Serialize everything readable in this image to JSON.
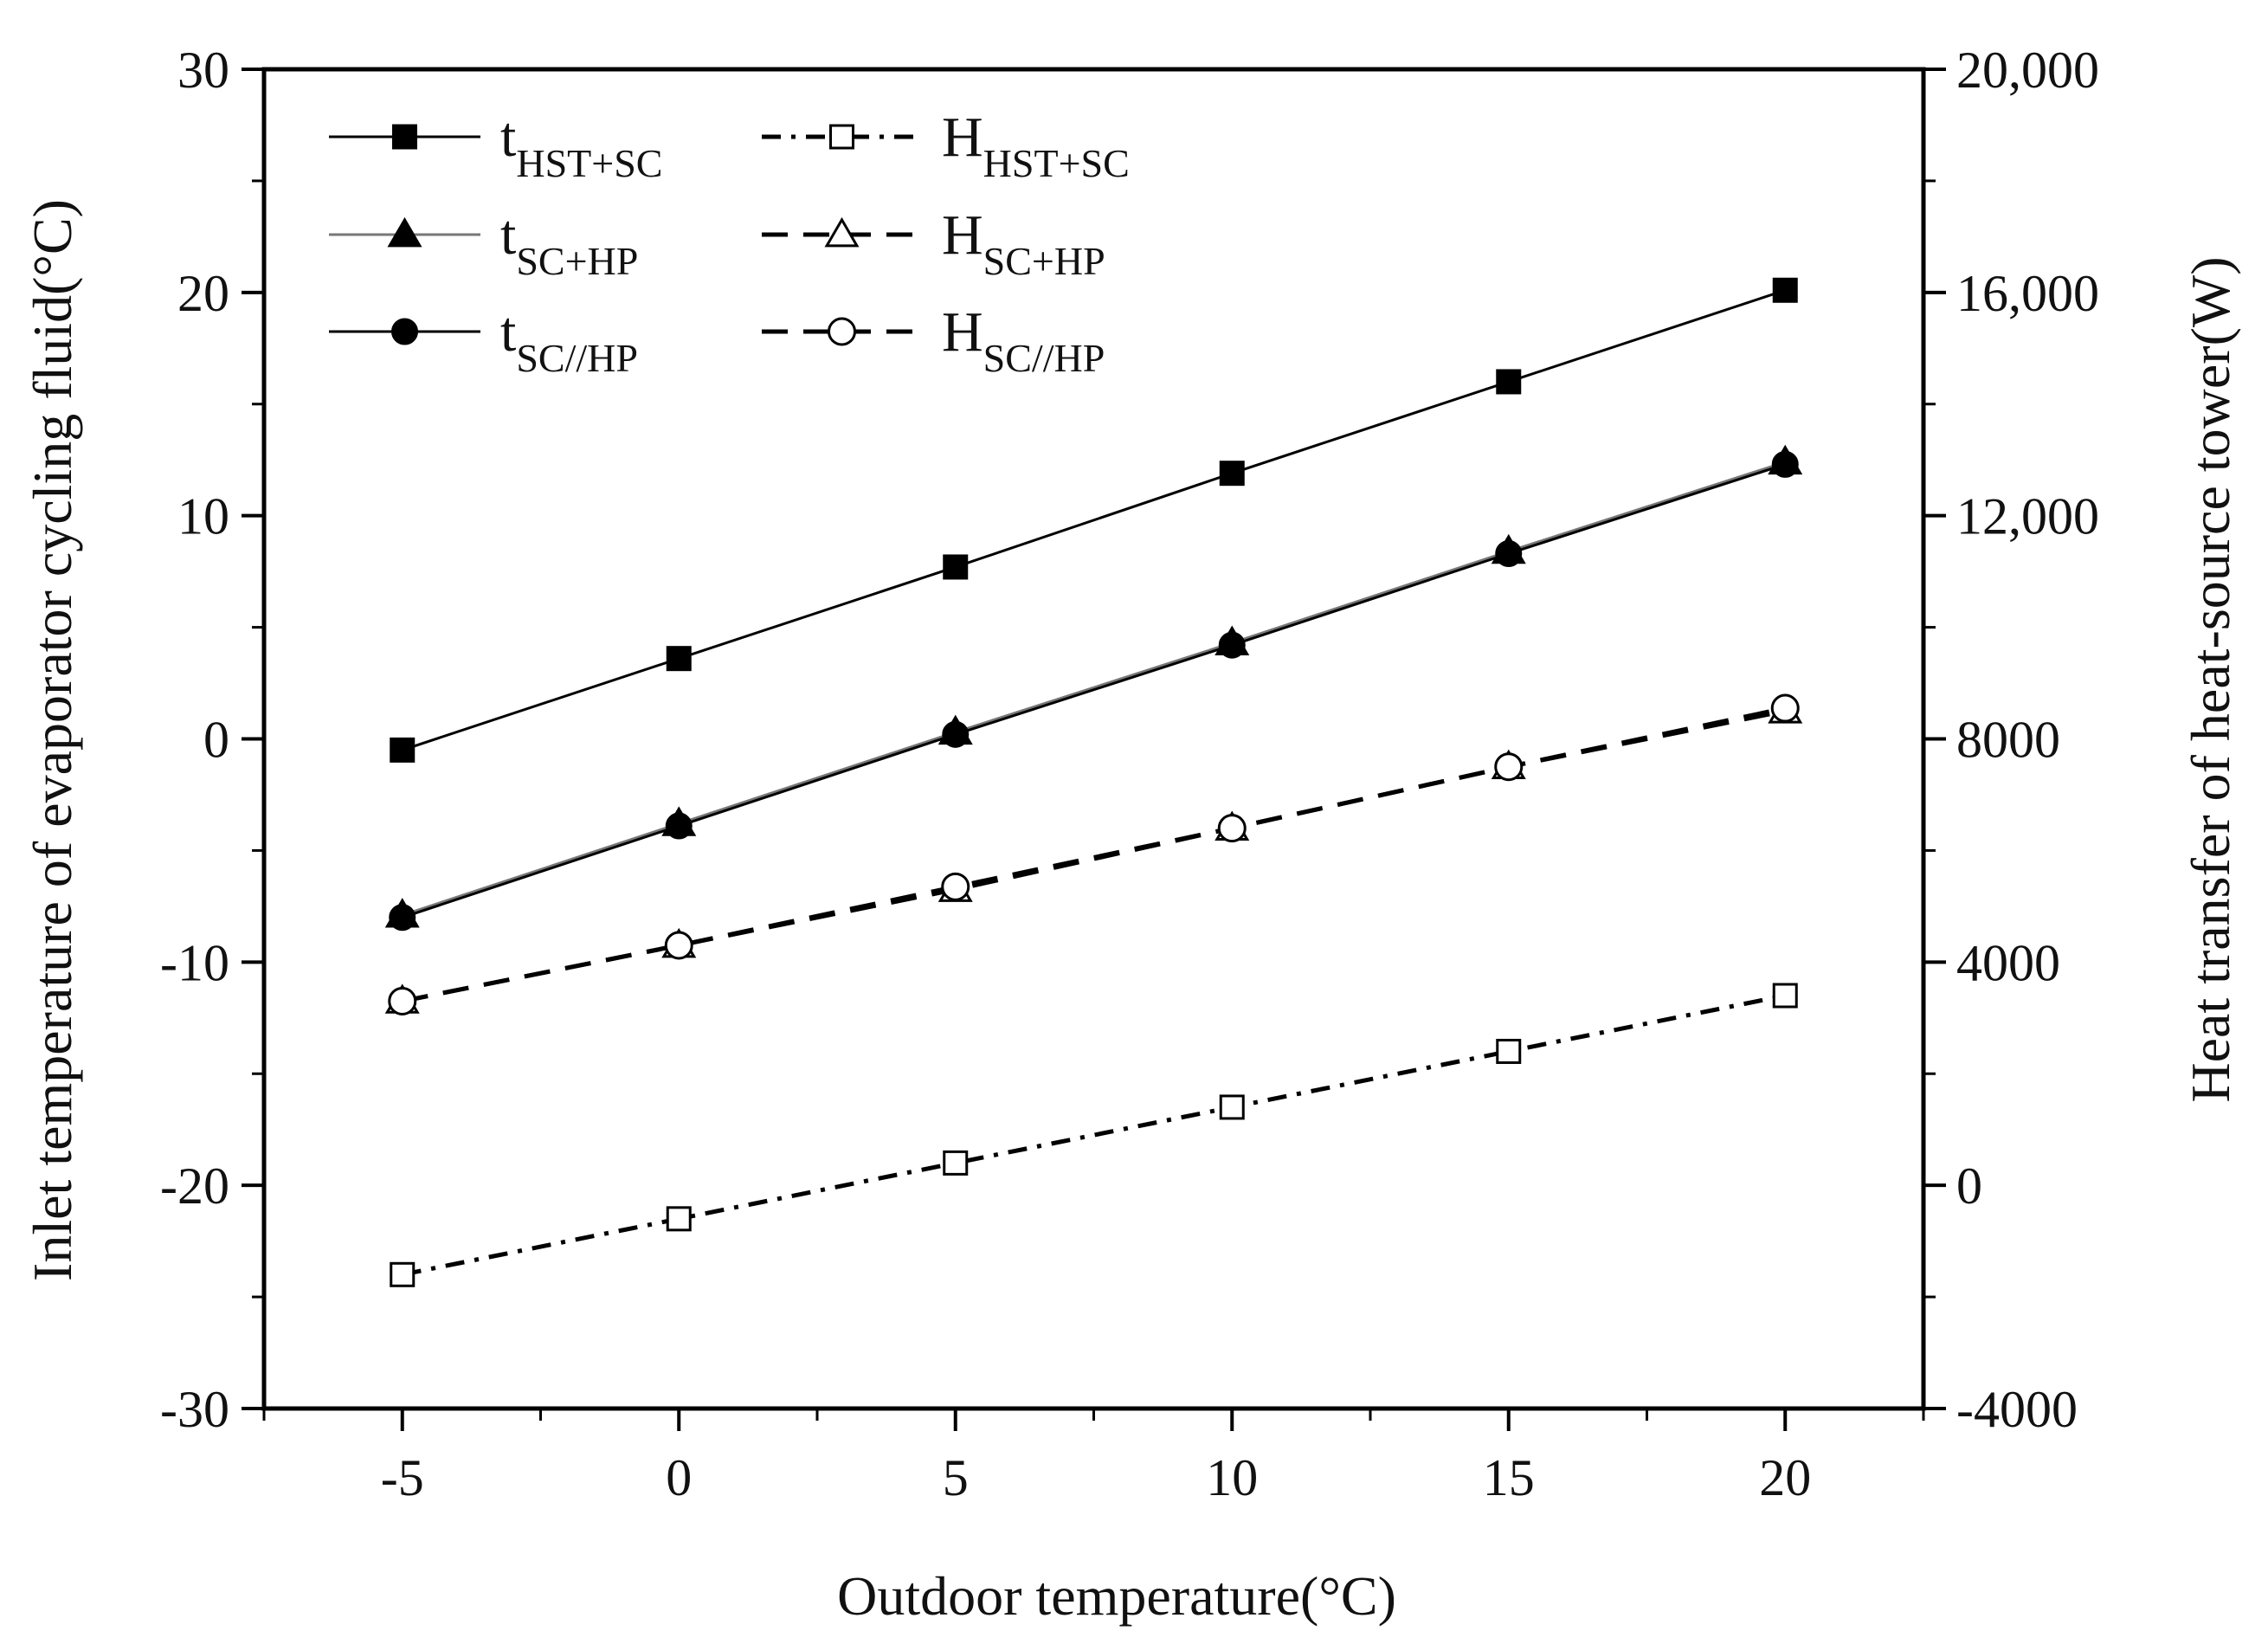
{
  "chart_data": {
    "type": "line",
    "title": "",
    "xlabel": "Outdoor temperature(°C)",
    "ylabel": "Inlet temperature of evaporator cycling fluid(°C)",
    "ylabel_right": "Heat transfer of heat-source tower(W)",
    "x": [
      -5,
      0,
      5,
      10,
      15,
      20
    ],
    "xlim": [
      -7.5,
      22.5
    ],
    "ylim": [
      -30,
      30
    ],
    "ylim_right": [
      -4000,
      20000
    ],
    "x_ticks": [
      "-5",
      "0",
      "5",
      "10",
      "15",
      "20"
    ],
    "y_ticks": [
      "-30",
      "-20",
      "-10",
      "0",
      "10",
      "20",
      "30"
    ],
    "y_ticks_right": [
      "-4000",
      "0",
      "4000",
      "8000",
      "12,000",
      "16,000",
      "20,000"
    ],
    "grid": false,
    "legend_position": "top-left",
    "series": [
      {
        "name": "t",
        "sub": "HST+SC",
        "axis": "left",
        "marker": "square-filled",
        "line": "solid",
        "color": "#000000",
        "values": [
          -0.5,
          3.6,
          7.7,
          11.9,
          16.0,
          20.1
        ]
      },
      {
        "name": "t",
        "sub": "SC+HP",
        "axis": "left",
        "marker": "triangle-filled",
        "line": "solid",
        "color": "#777777",
        "values": [
          -7.9,
          -3.8,
          0.3,
          4.3,
          8.4,
          12.4
        ]
      },
      {
        "name": "t",
        "sub": "SC//HP",
        "axis": "left",
        "marker": "circle-filled",
        "line": "solid",
        "color": "#000000",
        "values": [
          -8.0,
          -3.9,
          0.2,
          4.2,
          8.3,
          12.3
        ]
      },
      {
        "name": "H",
        "sub": "HST+SC",
        "axis": "right",
        "marker": "square-open",
        "line": "dashdot",
        "color": "#000000",
        "values": [
          -1600,
          -600,
          400,
          1400,
          2400,
          3400
        ]
      },
      {
        "name": "H",
        "sub": "SC+HP",
        "axis": "right",
        "marker": "triangle-open",
        "line": "dash",
        "color": "#000000",
        "values": [
          3300,
          4300,
          5300,
          6400,
          7500,
          8500
        ]
      },
      {
        "name": "H",
        "sub": "SC//HP",
        "axis": "right",
        "marker": "circle-open",
        "line": "dash",
        "color": "#000000",
        "values": [
          3300,
          4300,
          5350,
          6400,
          7500,
          8550
        ]
      }
    ]
  }
}
